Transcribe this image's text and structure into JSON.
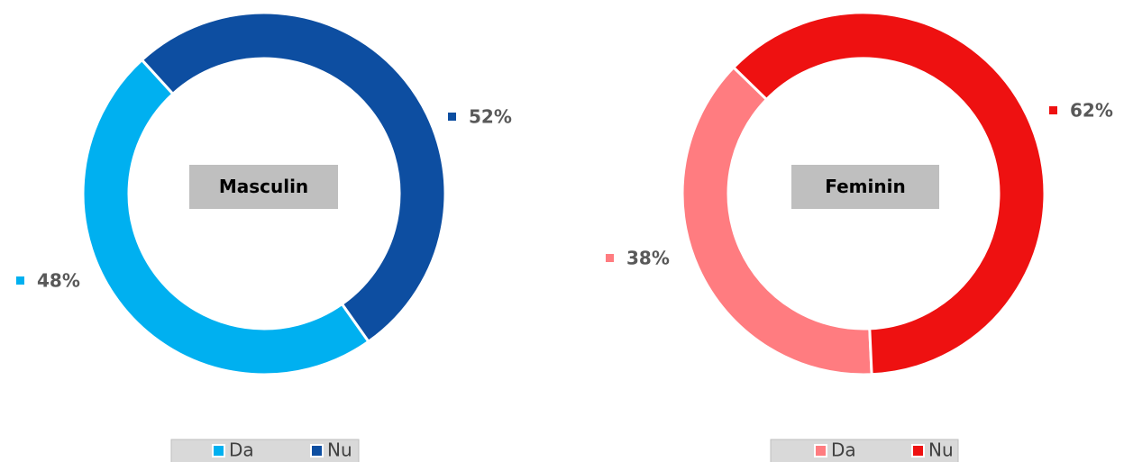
{
  "chart_data": [
    {
      "type": "pie",
      "title": "Masculin",
      "categories": [
        "Da",
        "Nu"
      ],
      "values": [
        48,
        52
      ],
      "value_labels": [
        "48%",
        "52%"
      ],
      "colors": [
        "#00b0f0",
        "#0d4ea1"
      ],
      "donut": true,
      "legend": "bottom"
    },
    {
      "type": "pie",
      "title": "Feminin",
      "categories": [
        "Da",
        "Nu"
      ],
      "values": [
        38,
        62
      ],
      "value_labels": [
        "38%",
        "62%"
      ],
      "colors": [
        "#ff7c80",
        "#ee1111"
      ],
      "donut": true,
      "legend": "bottom"
    }
  ]
}
